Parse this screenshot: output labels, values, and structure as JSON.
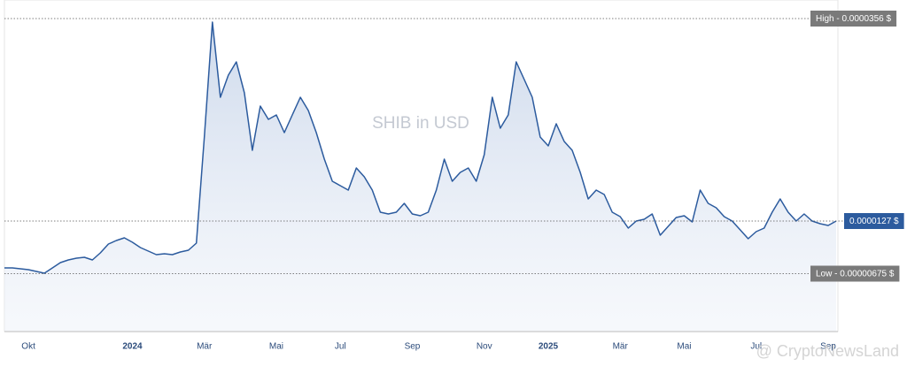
{
  "chart_data": {
    "type": "line",
    "title": "SHIB in USD",
    "watermark": "@ CryptoNewsLand",
    "color": "#2c5b9e",
    "categories": [
      null,
      null,
      null,
      "Okt",
      null,
      null,
      null,
      null,
      null,
      null,
      null,
      null,
      null,
      null,
      null,
      null,
      "2024",
      null,
      null,
      null,
      null,
      null,
      null,
      null,
      null,
      "Mär",
      null,
      null,
      null,
      null,
      null,
      null,
      null,
      null,
      "Mai",
      null,
      null,
      null,
      null,
      null,
      null,
      null,
      "Jul",
      null,
      null,
      null,
      null,
      null,
      null,
      null,
      null,
      "Sep",
      null,
      null,
      null,
      null,
      null,
      null,
      null,
      null,
      "Nov",
      null,
      null,
      null,
      null,
      null,
      null,
      null,
      "2025",
      null,
      null,
      null,
      null,
      null,
      null,
      null,
      null,
      "Mär",
      null,
      null,
      null,
      null,
      null,
      null,
      null,
      "Mai",
      null,
      null,
      null,
      null,
      null,
      null,
      null,
      null,
      "Jul",
      null,
      null,
      null,
      null,
      null,
      null,
      null,
      null,
      "Sep",
      null
    ],
    "values": [
      7.4e-06,
      7.4e-06,
      7.3e-06,
      7.2e-06,
      7e-06,
      6.8e-06,
      7.4e-06,
      8e-06,
      8.3e-06,
      8.5e-06,
      8.6e-06,
      8.3e-06,
      9.1e-06,
      1.01e-05,
      1.05e-05,
      1.08e-05,
      1.03e-05,
      9.7e-06,
      9.3e-06,
      8.9e-06,
      9e-06,
      8.9e-06,
      9.2e-06,
      9.4e-06,
      1.02e-05,
      2.22e-05,
      3.52e-05,
      2.67e-05,
      2.92e-05,
      3.07e-05,
      2.72e-05,
      2.07e-05,
      2.57e-05,
      2.42e-05,
      2.47e-05,
      2.27e-05,
      2.47e-05,
      2.67e-05,
      2.52e-05,
      2.27e-05,
      1.97e-05,
      1.72e-05,
      1.67e-05,
      1.62e-05,
      1.87e-05,
      1.77e-05,
      1.62e-05,
      1.37e-05,
      1.35e-05,
      1.37e-05,
      1.47e-05,
      1.35e-05,
      1.33e-05,
      1.37e-05,
      1.62e-05,
      1.97e-05,
      1.72e-05,
      1.82e-05,
      1.87e-05,
      1.72e-05,
      2.02e-05,
      2.67e-05,
      2.32e-05,
      2.47e-05,
      3.07e-05,
      2.87e-05,
      2.67e-05,
      2.22e-05,
      2.12e-05,
      2.37e-05,
      2.17e-05,
      2.07e-05,
      1.82e-05,
      1.52e-05,
      1.62e-05,
      1.57e-05,
      1.37e-05,
      1.32e-05,
      1.19e-05,
      1.27e-05,
      1.29e-05,
      1.35e-05,
      1.11e-05,
      1.21e-05,
      1.31e-05,
      1.33e-05,
      1.26e-05,
      1.62e-05,
      1.47e-05,
      1.42e-05,
      1.32e-05,
      1.27e-05,
      1.17e-05,
      1.07e-05,
      1.15e-05,
      1.19e-05,
      1.37e-05,
      1.52e-05,
      1.37e-05,
      1.27e-05,
      1.35e-05,
      1.27e-05,
      1.24e-05,
      1.22e-05,
      1.27e-05
    ],
    "ylim": [
      2e-07,
      3.67e-05
    ],
    "reference_lines": [
      {
        "value": 3.56e-05,
        "label": "High - 0.0000356 $",
        "color": "#7a7a7a"
      },
      {
        "value": 1.27e-05,
        "label": "0.0000127 $",
        "color": "#2c5b9e"
      },
      {
        "value": 6.75e-06,
        "label": "Low - 0.00000675 $",
        "color": "#7a7a7a"
      }
    ]
  }
}
